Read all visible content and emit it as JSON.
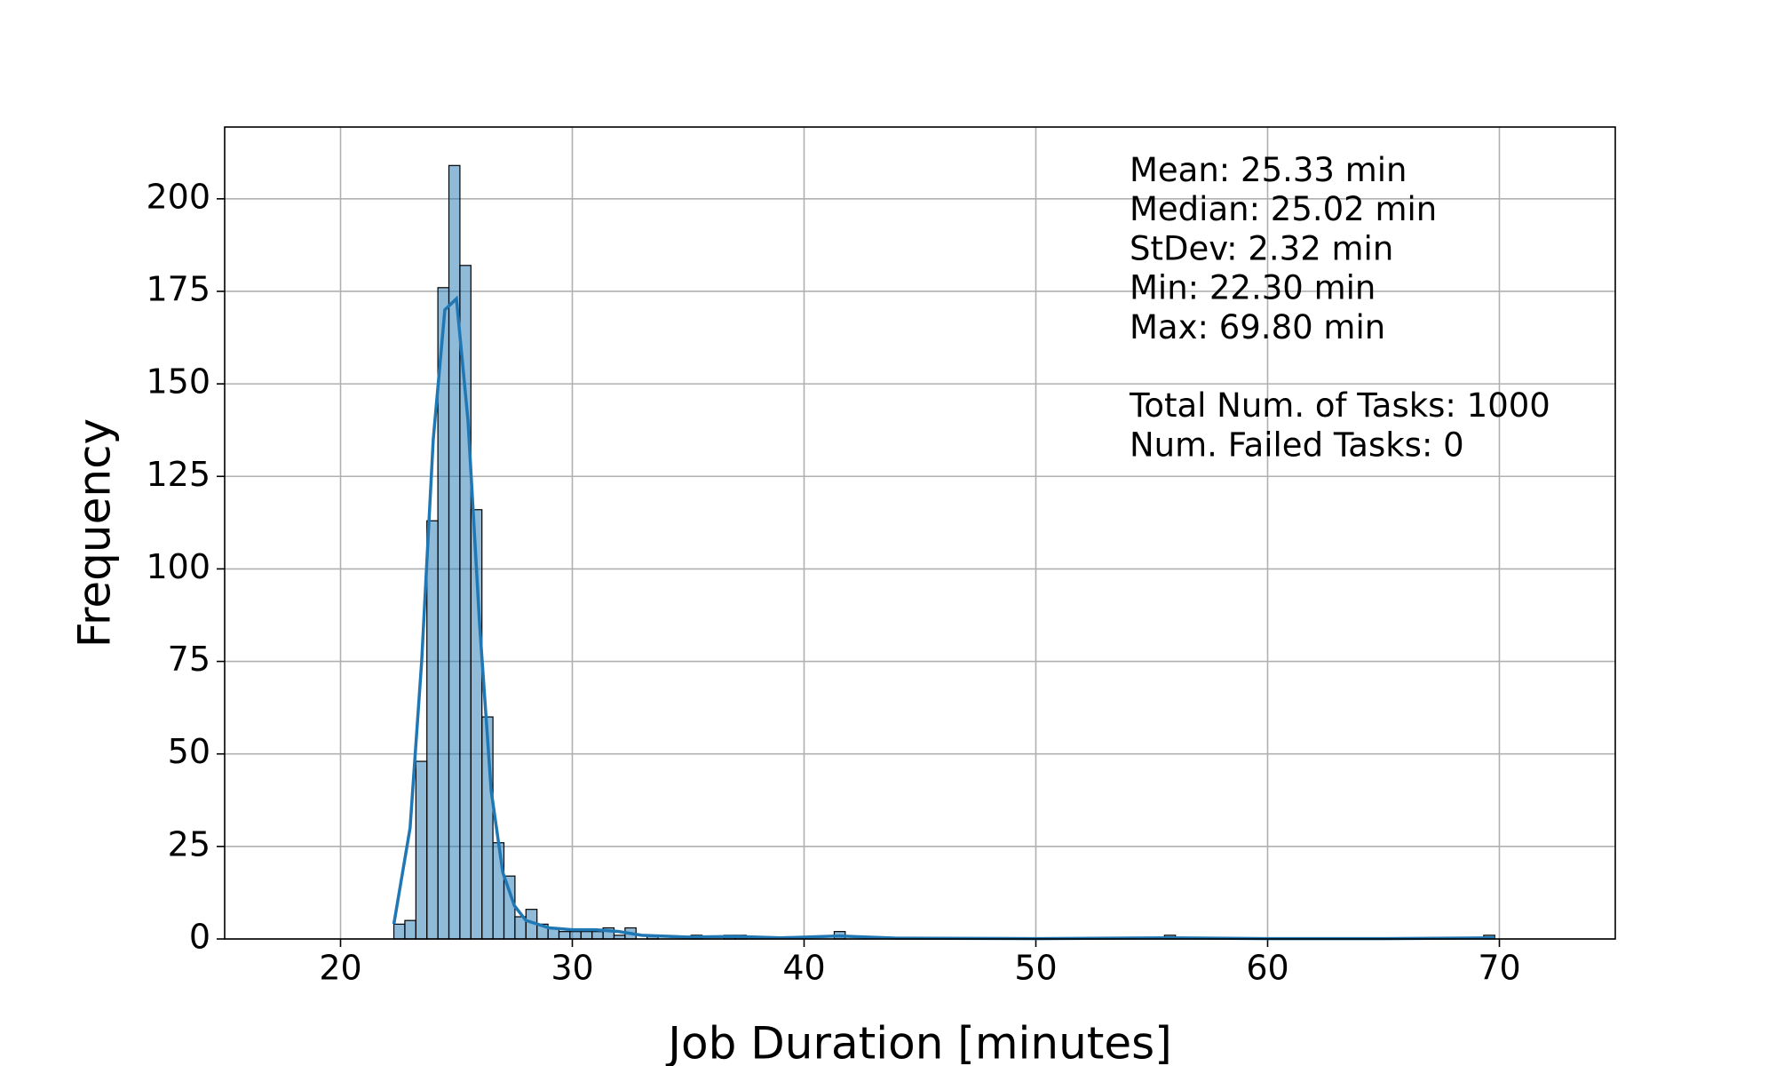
{
  "chart_data": {
    "type": "histogram",
    "xlabel": "Job Duration [minutes]",
    "ylabel": "Frequency",
    "bins": [
      22.3,
      22.775,
      23.25,
      23.725,
      24.2,
      24.675,
      25.15,
      25.625,
      26.1,
      26.575,
      27.05,
      27.525,
      28,
      28.475,
      28.95,
      29.425,
      29.9,
      30.375,
      30.85,
      31.325,
      31.8,
      32.275,
      32.75,
      33.225,
      33.7,
      34.175,
      34.65,
      35.125,
      35.6,
      36.075,
      36.55,
      37.025,
      37.5,
      37.975,
      38.45,
      38.925,
      39.4,
      39.875,
      40.35,
      40.825,
      41.3,
      41.775,
      42.25,
      42.725,
      43.2,
      43.675,
      44.15,
      44.625,
      45.1,
      45.575,
      46.05,
      46.525,
      47,
      47.475,
      47.95,
      48.425,
      48.9,
      49.375,
      49.85,
      50.325,
      50.8,
      51.275,
      51.75,
      52.225,
      52.7,
      53.175,
      53.65,
      54.125,
      54.6,
      55.075,
      55.55,
      56.025,
      56.5,
      56.975,
      57.45,
      57.925,
      58.4,
      58.875,
      59.35,
      59.825,
      60.3,
      60.775,
      61.25,
      61.725,
      62.2,
      62.675,
      63.15,
      63.625,
      64.1,
      64.575,
      65.05,
      65.525,
      66,
      66.475,
      66.95,
      67.425,
      67.9,
      68.375,
      68.85,
      69.325,
      69.8
    ],
    "counts": [
      4,
      5,
      48,
      113,
      176,
      209,
      182,
      116,
      60,
      26,
      17,
      6,
      8,
      4,
      3,
      2,
      2,
      2,
      2,
      3,
      1,
      3,
      0,
      1,
      0,
      0,
      0,
      1,
      0,
      0,
      1,
      1,
      0,
      0,
      0,
      0,
      0,
      0,
      0,
      0,
      2,
      0,
      0,
      0,
      0,
      0,
      0,
      0,
      0,
      0,
      0,
      0,
      0,
      0,
      0,
      0,
      0,
      0,
      0,
      0,
      0,
      0,
      0,
      0,
      0,
      0,
      0,
      0,
      0,
      0,
      1,
      0,
      0,
      0,
      0,
      0,
      0,
      0,
      0,
      0,
      0,
      0,
      0,
      0,
      0,
      0,
      0,
      0,
      0,
      0,
      0,
      0,
      0,
      0,
      0,
      0,
      0,
      0,
      0,
      1
    ],
    "color": "#1f77b4",
    "kde": {
      "x": [
        22.3,
        23,
        23.5,
        24,
        24.5,
        25,
        25.5,
        26,
        26.5,
        27,
        27.5,
        28,
        29,
        30,
        31,
        32,
        33,
        35,
        37,
        39,
        41.5,
        44,
        50,
        55.8,
        60,
        65,
        69.8
      ],
      "values": [
        4,
        30,
        75,
        135,
        170,
        173,
        140,
        85,
        40,
        18,
        9,
        5,
        3,
        2.5,
        2.5,
        2,
        1,
        0.5,
        0.7,
        0.3,
        0.8,
        0.2,
        0.1,
        0.3,
        0.1,
        0.1,
        0.3
      ],
      "color": "#1f77b4"
    },
    "xlim": [
      15,
      75
    ],
    "ylim": [
      0,
      219.4
    ],
    "xticks": [
      20,
      30,
      40,
      50,
      60,
      70
    ],
    "yticks": [
      0,
      25,
      50,
      75,
      100,
      125,
      150,
      175,
      200
    ],
    "grid": true,
    "stats": [
      "Mean: 25.33 min",
      "Median: 25.02 min",
      "StDev: 2.32 min",
      "Min: 22.30 min",
      "Max: 69.80 min"
    ],
    "totals": [
      "Total Num. of Tasks: 1000",
      "Num. Failed Tasks: 0"
    ]
  }
}
